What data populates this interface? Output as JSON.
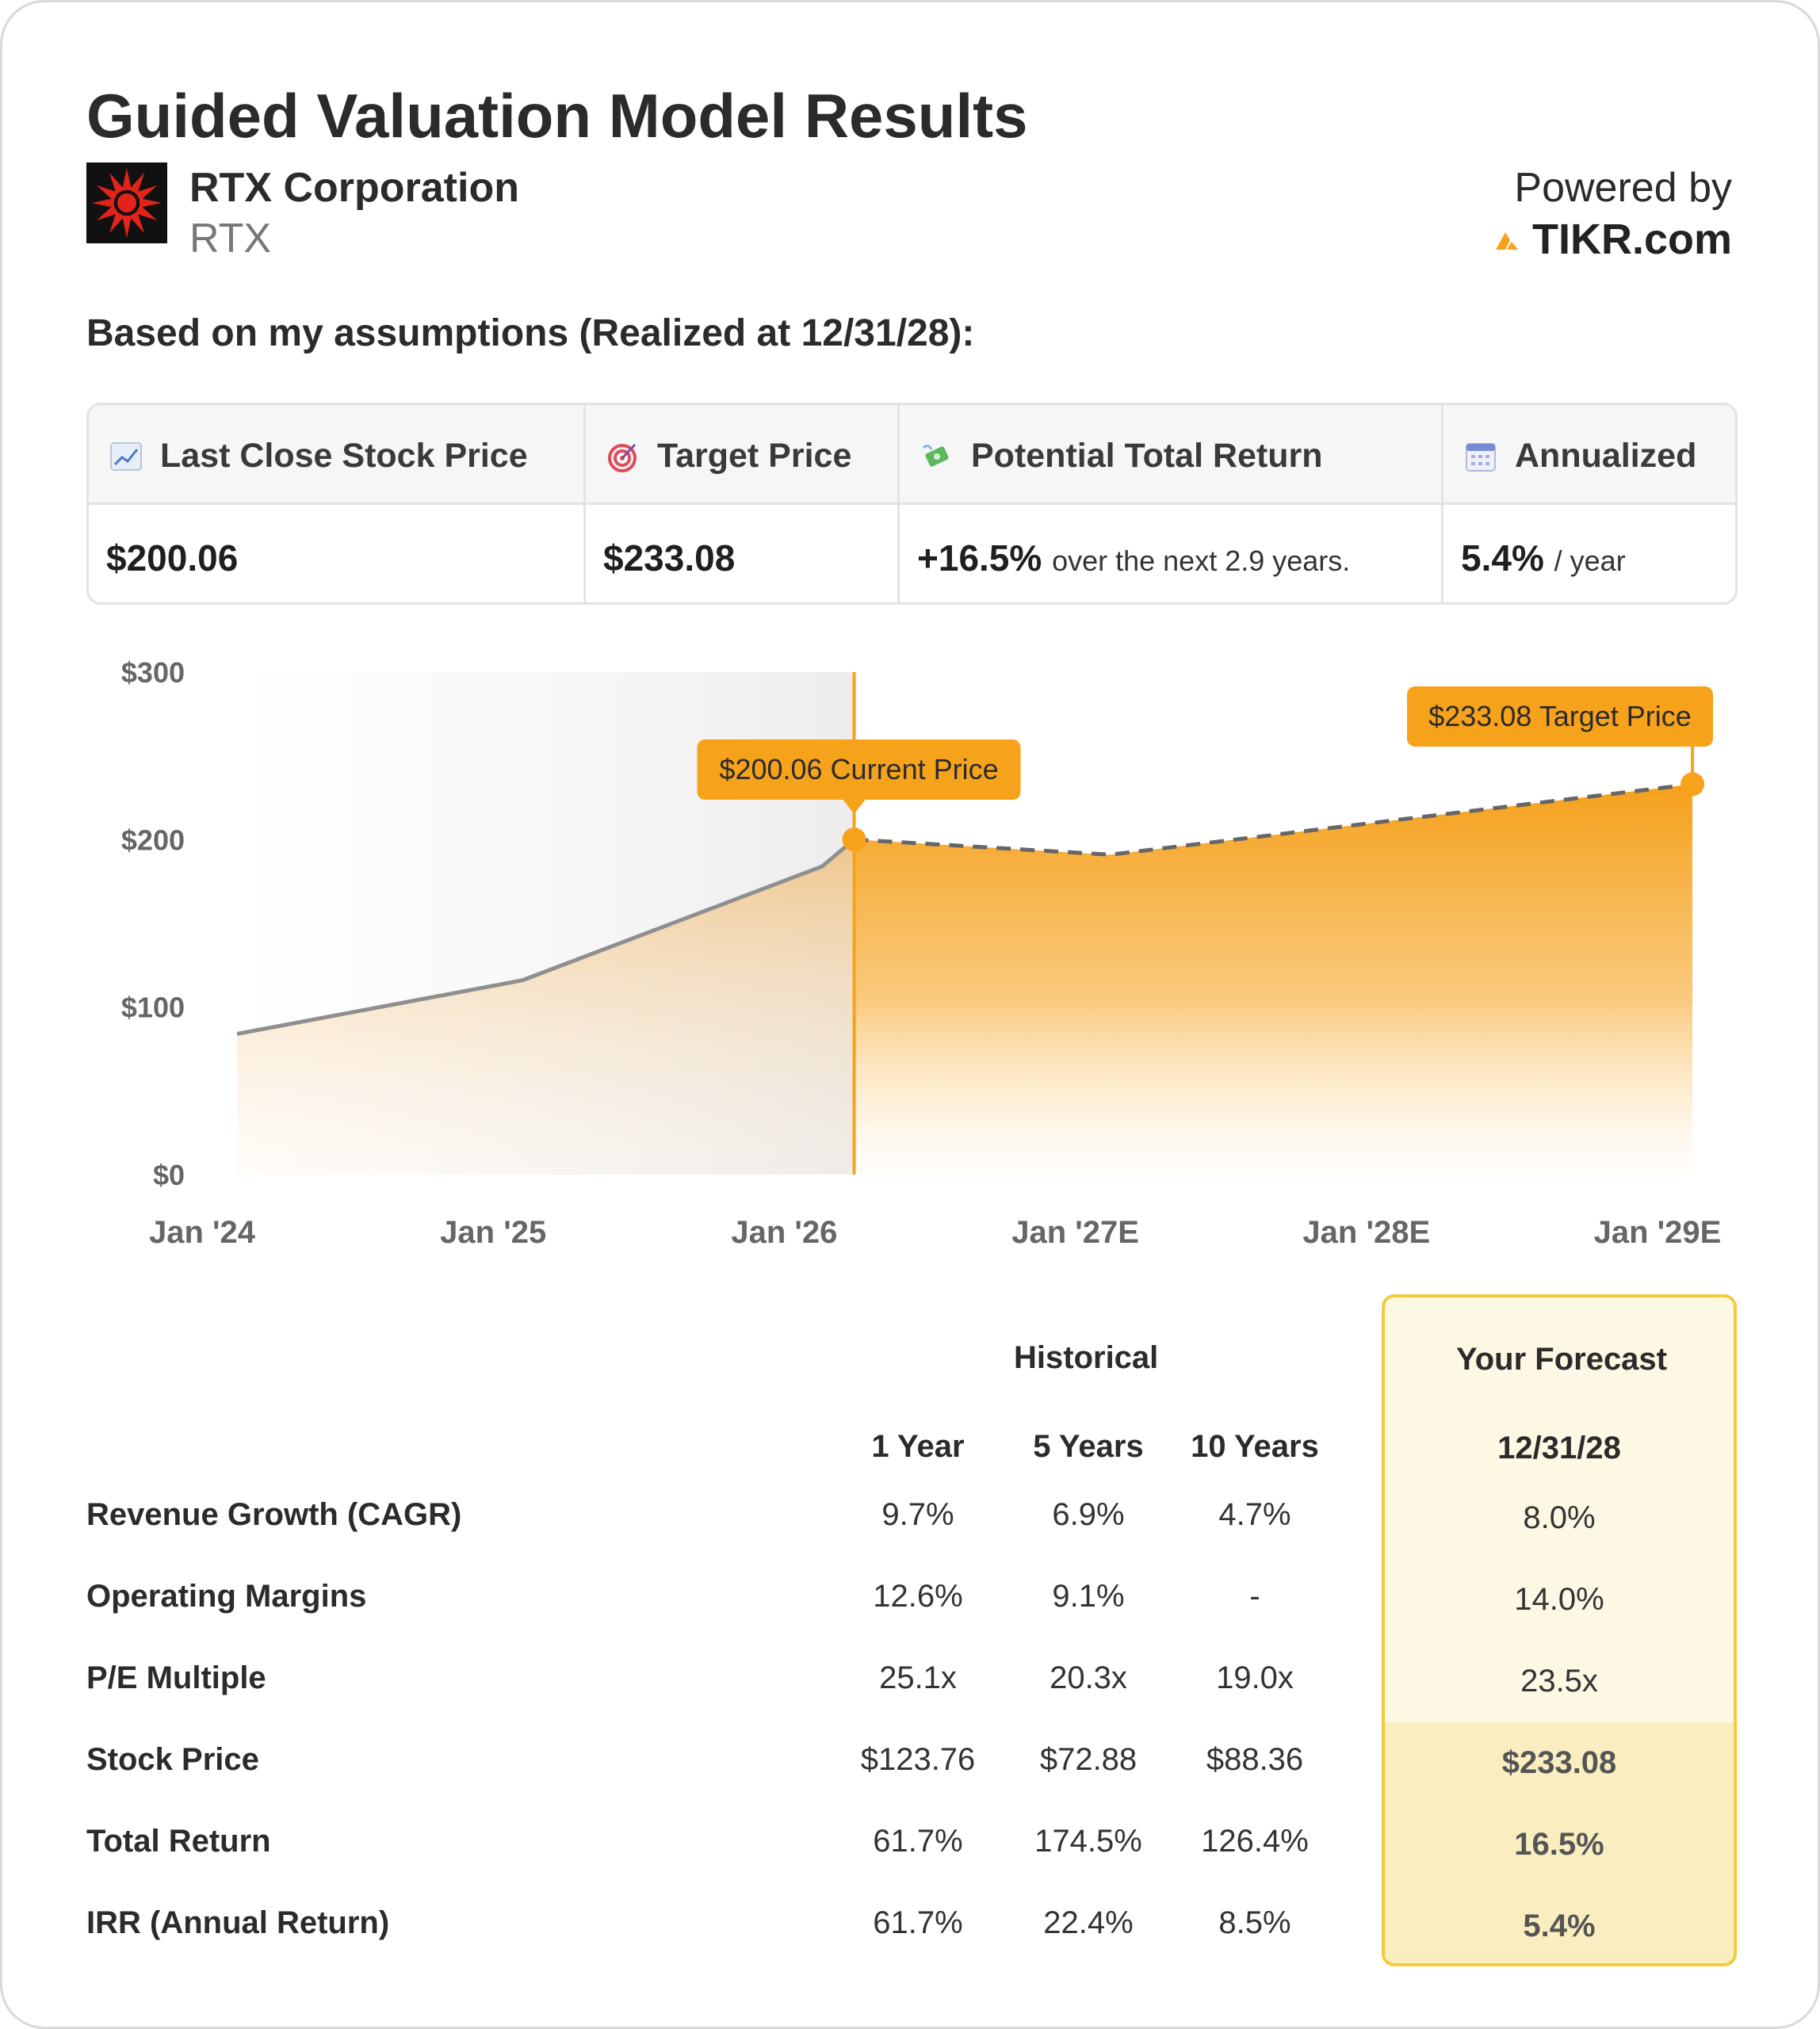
{
  "header": {
    "title": "Guided Valuation Model Results",
    "company": "RTX Corporation",
    "ticker": "RTX",
    "powered_by": "Powered by",
    "brand": "TIKR.com"
  },
  "subtitle": "Based on my assumptions (Realized at 12/31/28):",
  "summary": {
    "columns": [
      {
        "label": "Last Close Stock Price",
        "icon": "chart-increasing-icon",
        "value": "$200.06",
        "note": ""
      },
      {
        "label": "Target Price",
        "icon": "target-icon",
        "value": "$233.08",
        "note": ""
      },
      {
        "label": "Potential Total Return",
        "icon": "money-with-wings-icon",
        "value": "+16.5%",
        "note": "over the next 2.9 years."
      },
      {
        "label": "Annualized",
        "icon": "calendar-icon",
        "value": "5.4%",
        "note": "/ year"
      }
    ]
  },
  "chart_data": {
    "type": "area",
    "ylim": [
      0,
      300
    ],
    "yticks": [
      "$0",
      "$100",
      "$200",
      "$300"
    ],
    "ytick_values": [
      0,
      100,
      200,
      300
    ],
    "xticks": [
      "Jan '24",
      "Jan '25",
      "Jan '26",
      "Jan '27E",
      "Jan '28E",
      "Jan '29E"
    ],
    "xtick_values": [
      2024.0,
      2025.0,
      2026.0,
      2027.0,
      2028.0,
      2029.0
    ],
    "historical": {
      "x": [
        2024.12,
        2025.1,
        2026.13,
        2026.24
      ],
      "y": [
        84,
        116,
        184,
        200.06
      ]
    },
    "forecast": {
      "x": [
        2026.24,
        2027.12,
        2029.12
      ],
      "y": [
        200.06,
        191,
        233.08
      ]
    },
    "annotations": [
      {
        "label": "$200.06 Current Price",
        "x": 2026.24,
        "y": 200.06
      },
      {
        "label": "$233.08 Target Price",
        "x": 2029.12,
        "y": 233.08
      }
    ],
    "colors": {
      "accent": "#f7a21b",
      "historical_line": "#8f8f8f",
      "forecast_line": "#666666"
    }
  },
  "table": {
    "historical_header": "Historical",
    "forecast_header": "Your Forecast",
    "period_headers": [
      "1 Year",
      "5 Years",
      "10 Years"
    ],
    "forecast_date": "12/31/28",
    "rows": [
      {
        "label": "Revenue Growth (CAGR)",
        "values": [
          "9.7%",
          "6.9%",
          "4.7%"
        ],
        "forecast": "8.0%"
      },
      {
        "label": "Operating Margins",
        "values": [
          "12.6%",
          "9.1%",
          "-"
        ],
        "forecast": "14.0%"
      },
      {
        "label": "P/E Multiple",
        "values": [
          "25.1x",
          "20.3x",
          "19.0x"
        ],
        "forecast": "23.5x"
      },
      {
        "label": "Stock Price",
        "values": [
          "$123.76",
          "$72.88",
          "$88.36"
        ],
        "forecast": "$233.08"
      },
      {
        "label": "Total Return",
        "values": [
          "61.7%",
          "174.5%",
          "126.4%"
        ],
        "forecast": "16.5%"
      },
      {
        "label": "IRR (Annual Return)",
        "values": [
          "61.7%",
          "22.4%",
          "8.5%"
        ],
        "forecast": "5.4%"
      }
    ]
  }
}
